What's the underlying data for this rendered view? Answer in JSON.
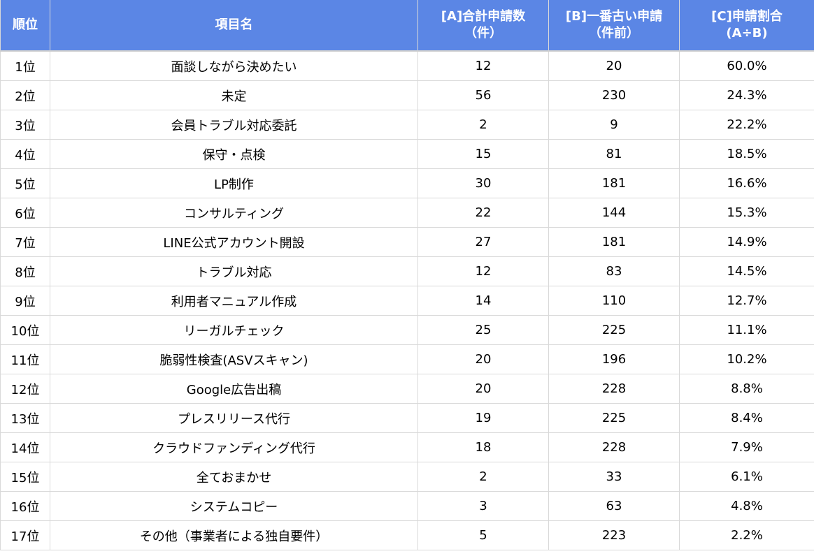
{
  "header": {
    "rank": "順位",
    "item": "項目名",
    "a_line1": "[A]合計申請数",
    "a_line2": "（件）",
    "b_line1": "[B]一番古い申請",
    "b_line2": "（件前）",
    "c_line1": "[C]申請割合",
    "c_line2": "(A÷B)"
  },
  "rows": [
    {
      "rank": "1位",
      "item": "面談しながら決めたい",
      "a": "12",
      "b": "20",
      "c": "60.0%"
    },
    {
      "rank": "2位",
      "item": "未定",
      "a": "56",
      "b": "230",
      "c": "24.3%"
    },
    {
      "rank": "3位",
      "item": "会員トラブル対応委託",
      "a": "2",
      "b": "9",
      "c": "22.2%"
    },
    {
      "rank": "4位",
      "item": "保守・点検",
      "a": "15",
      "b": "81",
      "c": "18.5%"
    },
    {
      "rank": "5位",
      "item": "LP制作",
      "a": "30",
      "b": "181",
      "c": "16.6%"
    },
    {
      "rank": "6位",
      "item": "コンサルティング",
      "a": "22",
      "b": "144",
      "c": "15.3%"
    },
    {
      "rank": "7位",
      "item": "LINE公式アカウント開設",
      "a": "27",
      "b": "181",
      "c": "14.9%"
    },
    {
      "rank": "8位",
      "item": "トラブル対応",
      "a": "12",
      "b": "83",
      "c": "14.5%"
    },
    {
      "rank": "9位",
      "item": "利用者マニュアル作成",
      "a": "14",
      "b": "110",
      "c": "12.7%"
    },
    {
      "rank": "10位",
      "item": "リーガルチェック",
      "a": "25",
      "b": "225",
      "c": "11.1%"
    },
    {
      "rank": "11位",
      "item": "脆弱性検査(ASVスキャン)",
      "a": "20",
      "b": "196",
      "c": "10.2%"
    },
    {
      "rank": "12位",
      "item": "Google広告出稿",
      "a": "20",
      "b": "228",
      "c": "8.8%"
    },
    {
      "rank": "13位",
      "item": "プレスリリース代行",
      "a": "19",
      "b": "225",
      "c": "8.4%"
    },
    {
      "rank": "14位",
      "item": "クラウドファンディング代行",
      "a": "18",
      "b": "228",
      "c": "7.9%"
    },
    {
      "rank": "15位",
      "item": "全ておまかせ",
      "a": "2",
      "b": "33",
      "c": "6.1%"
    },
    {
      "rank": "16位",
      "item": "システムコピー",
      "a": "3",
      "b": "63",
      "c": "4.8%"
    },
    {
      "rank": "17位",
      "item": "その他（事業者による独自要件）",
      "a": "5",
      "b": "223",
      "c": "2.2%"
    }
  ]
}
